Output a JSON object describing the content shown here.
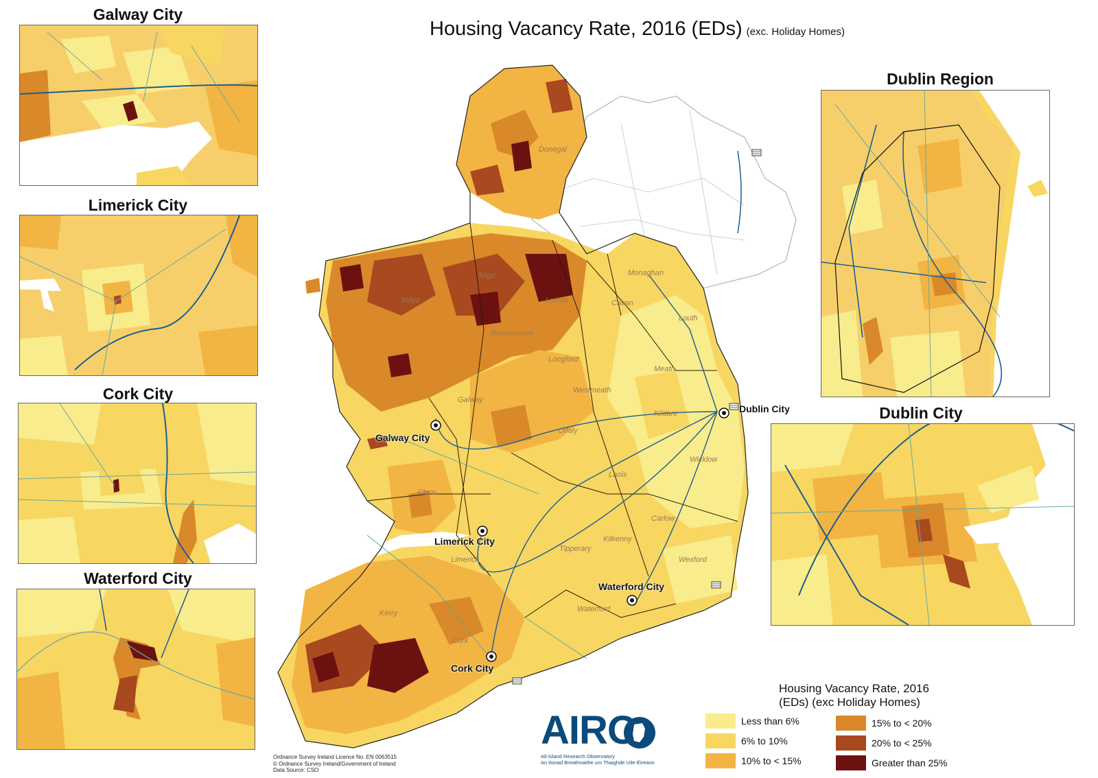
{
  "title": {
    "main": "Housing Vacancy Rate, 2016 (EDs)",
    "sub": "(exc. Holiday Homes)"
  },
  "insets": {
    "galway": "Galway City",
    "limerick": "Limerick City",
    "cork": "Cork City",
    "waterford": "Waterford City",
    "dublin_region": "Dublin Region",
    "dublin_city": "Dublin City"
  },
  "map_cities": {
    "galway": "Galway City",
    "limerick": "Limerick City",
    "cork": "Cork City",
    "waterford": "Waterford City",
    "dublin": "Dublin City"
  },
  "county_labels": {
    "donegal": "Donegal",
    "sligo": "Sligo",
    "mayo": "Mayo",
    "leitrim": "Leitrim",
    "roscommon": "Roscommon",
    "longford": "Longford",
    "monaghan": "Monaghan",
    "cavan": "Cavan",
    "louth": "Louth",
    "meath": "Meath",
    "westmeath": "Westmeath",
    "galway": "Galway",
    "offaly": "Offaly",
    "kildare": "Kildare",
    "wicklow": "Wicklow",
    "laois": "Laois",
    "clare": "Clare",
    "carlow": "Carlow",
    "kilkenny": "Kilkenny",
    "tipperary": "Tipperary",
    "wexford": "Wexford",
    "limerick": "Limerick",
    "waterford": "Waterford",
    "kerry": "Kerry",
    "cork": "Cork"
  },
  "legend": {
    "title_line1": "Housing Vacancy Rate, 2016",
    "title_line2": "(EDs) (exc Holiday Homes)",
    "items": [
      {
        "label": "Less than 6%",
        "color": "#f9ec8c"
      },
      {
        "label": "6% to 10%",
        "color": "#f7d662"
      },
      {
        "label": "10% to < 15%",
        "color": "#f2b443"
      },
      {
        "label": "15% to < 20%",
        "color": "#d9892a"
      },
      {
        "label": "20% to < 25%",
        "color": "#a9491f"
      },
      {
        "label": "Greater than 25%",
        "color": "#6b1210"
      }
    ]
  },
  "logo": {
    "name": "AIRO",
    "line1": "All-Island Research Observatory",
    "line2": "An tIonad Breathnaithe um Thaighde Uile-Éireann"
  },
  "credits": {
    "line1": "Ordnance Survey Ireland Licence No. EN 0063515",
    "line2": "© Ordnance Survey Ireland/Government of Ireland",
    "line3": "Data Source: CSO"
  }
}
